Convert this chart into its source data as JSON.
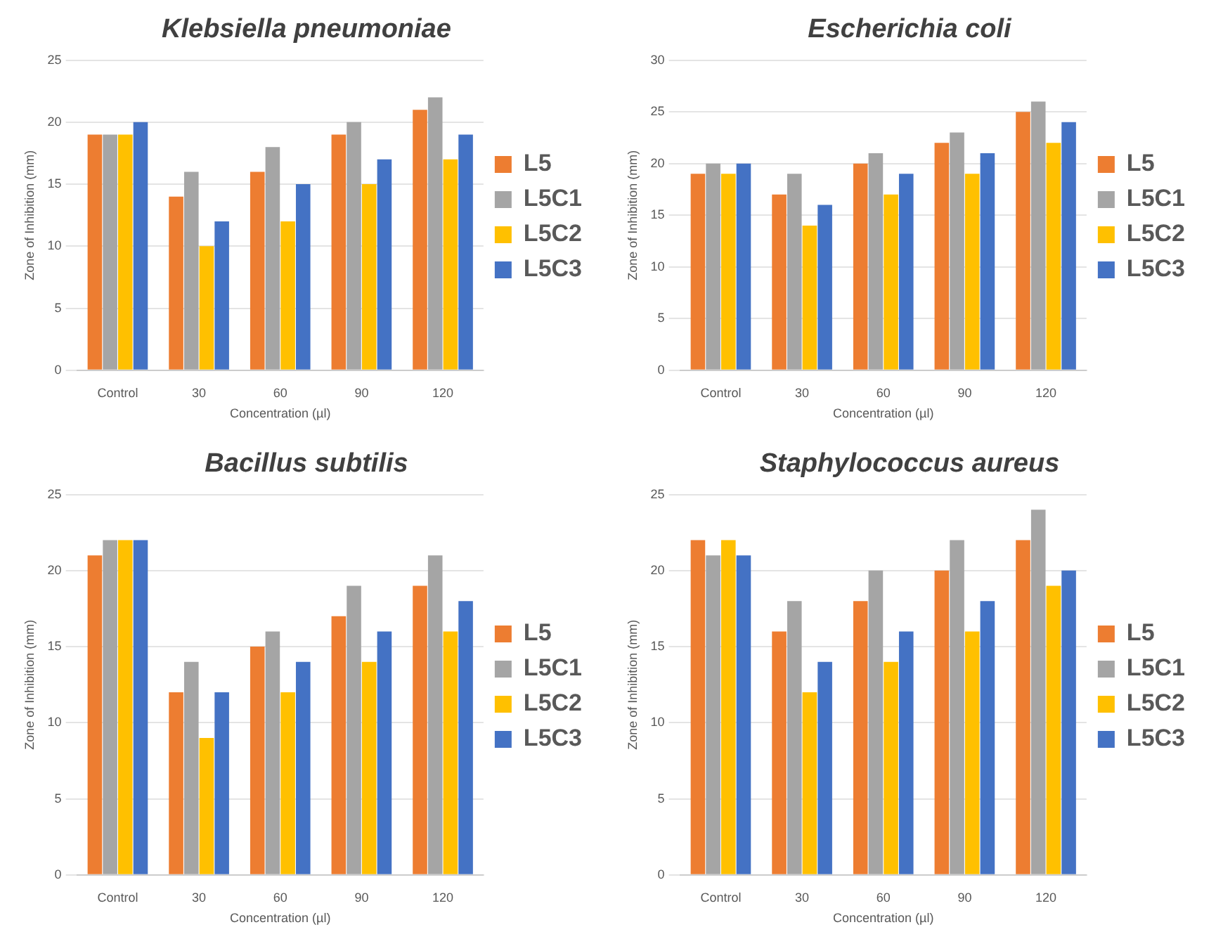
{
  "chart_data": [
    {
      "type": "bar",
      "title": "Klebsiella pneumoniae",
      "xlabel": "Concentration (µl)",
      "ylabel": "Zone of Inhibition (mm)",
      "categories": [
        "Control",
        "30",
        "60",
        "90",
        "120"
      ],
      "ylim": [
        0,
        25
      ],
      "yticks": [
        0,
        5,
        10,
        15,
        20,
        25
      ],
      "grid": "y",
      "legend": "right",
      "series": [
        {
          "name": "L5",
          "color": "#ed7d31",
          "values": [
            19,
            14,
            16,
            19,
            21
          ]
        },
        {
          "name": "L5C1",
          "color": "#a5a5a5",
          "values": [
            19,
            16,
            18,
            20,
            22
          ]
        },
        {
          "name": "L5C2",
          "color": "#ffc000",
          "values": [
            19,
            10,
            12,
            15,
            17
          ]
        },
        {
          "name": "L5C3",
          "color": "#4472c4",
          "values": [
            20,
            12,
            15,
            17,
            19
          ]
        }
      ]
    },
    {
      "type": "bar",
      "title": "Escherichia coli",
      "xlabel": "Concentration (µl)",
      "ylabel": "Zone of Inhibition (mm)",
      "categories": [
        "Control",
        "30",
        "60",
        "90",
        "120"
      ],
      "ylim": [
        0,
        30
      ],
      "yticks": [
        0,
        5,
        10,
        15,
        20,
        25,
        30
      ],
      "grid": "y",
      "legend": "right",
      "series": [
        {
          "name": "L5",
          "color": "#ed7d31",
          "values": [
            19,
            17,
            20,
            22,
            25
          ]
        },
        {
          "name": "L5C1",
          "color": "#a5a5a5",
          "values": [
            20,
            19,
            21,
            23,
            26
          ]
        },
        {
          "name": "L5C2",
          "color": "#ffc000",
          "values": [
            19,
            14,
            17,
            19,
            22
          ]
        },
        {
          "name": "L5C3",
          "color": "#4472c4",
          "values": [
            20,
            16,
            19,
            21,
            24
          ]
        }
      ]
    },
    {
      "type": "bar",
      "title": "Bacillus subtilis",
      "xlabel": "Concentration (µl)",
      "ylabel": "Zone of Inhibition (mm)",
      "categories": [
        "Control",
        "30",
        "60",
        "90",
        "120"
      ],
      "ylim": [
        0,
        25
      ],
      "yticks": [
        0,
        5,
        10,
        15,
        20,
        25
      ],
      "grid": "y",
      "legend": "right",
      "series": [
        {
          "name": "L5",
          "color": "#ed7d31",
          "values": [
            21,
            12,
            15,
            17,
            19
          ]
        },
        {
          "name": "L5C1",
          "color": "#a5a5a5",
          "values": [
            22,
            14,
            16,
            19,
            21
          ]
        },
        {
          "name": "L5C2",
          "color": "#ffc000",
          "values": [
            22,
            9,
            12,
            14,
            16
          ]
        },
        {
          "name": "L5C3",
          "color": "#4472c4",
          "values": [
            22,
            12,
            14,
            16,
            18
          ]
        }
      ]
    },
    {
      "type": "bar",
      "title": "Staphylococcus aureus",
      "xlabel": "Concentration (µl)",
      "ylabel": "Zone of Inhibition (mm)",
      "categories": [
        "Control",
        "30",
        "60",
        "90",
        "120"
      ],
      "ylim": [
        0,
        25
      ],
      "yticks": [
        0,
        5,
        10,
        15,
        20,
        25
      ],
      "grid": "y",
      "legend": "right",
      "series": [
        {
          "name": "L5",
          "color": "#ed7d31",
          "values": [
            22,
            16,
            18,
            20,
            22
          ]
        },
        {
          "name": "L5C1",
          "color": "#a5a5a5",
          "values": [
            21,
            18,
            20,
            22,
            24
          ]
        },
        {
          "name": "L5C2",
          "color": "#ffc000",
          "values": [
            22,
            12,
            14,
            16,
            19
          ]
        },
        {
          "name": "L5C3",
          "color": "#4472c4",
          "values": [
            21,
            14,
            16,
            18,
            20
          ]
        }
      ]
    }
  ]
}
